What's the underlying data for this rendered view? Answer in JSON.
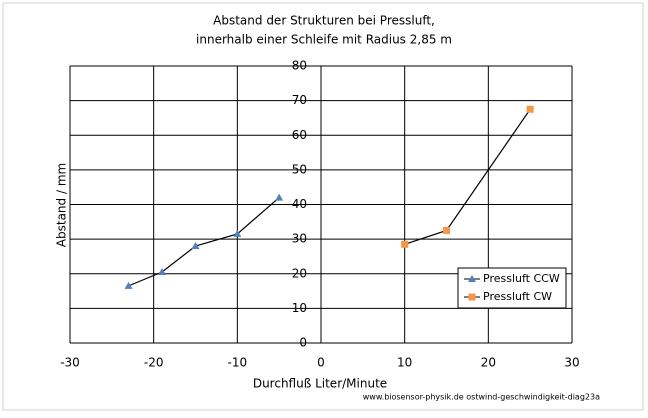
{
  "chart_data": {
    "type": "line",
    "title": [
      "Abstand der Strukturen bei Pressluft,",
      "innerhalb einer Schleife mit Radius 2,85 m"
    ],
    "x_label": "Durchfluß Liter/Minute",
    "y_label": "Abstand / mm",
    "source": "www.biosensor-physik.de  ostwind-geschwindigkeit-diag23a",
    "xlim": [
      -30,
      30
    ],
    "xticks": [
      -30,
      -20,
      -10,
      0,
      10,
      20,
      30
    ],
    "ylim": [
      0,
      80
    ],
    "yticks": [
      0,
      10,
      20,
      30,
      40,
      50,
      60,
      70,
      80
    ],
    "grid": true,
    "legend": "lower right",
    "series": [
      {
        "name": "Pressluft CCW",
        "color": "#4f81bd",
        "marker": "triangle",
        "x": [
          -23,
          -19,
          -15,
          -10,
          -5
        ],
        "values": [
          16.5,
          20.5,
          28,
          31.5,
          42
        ]
      },
      {
        "name": "Pressluft CW",
        "color": "#f79646",
        "marker": "square",
        "x": [
          10,
          15,
          25
        ],
        "values": [
          28.5,
          32.5,
          67.5
        ]
      }
    ]
  }
}
